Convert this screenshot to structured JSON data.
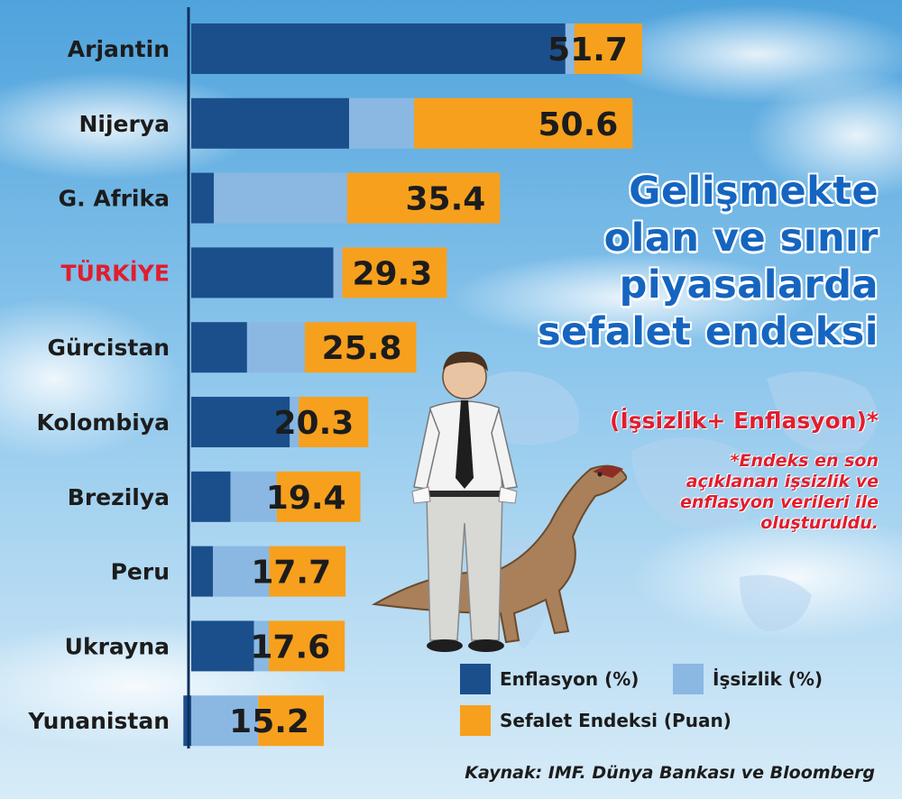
{
  "chart_data": {
    "type": "bar",
    "title": "Gelişmekte olan ve sınır piyasalarda sefalet endeksi",
    "title_lines": [
      "Gelişmekte",
      "olan ve sınır",
      "piyasalarda",
      "sefalet endeksi"
    ],
    "subtitle": "(İşsizlik+ Enflasyon)*",
    "note_lines": [
      "*Endeks en son",
      "açıklanan işsizlik ve",
      "enflasyon verileri ile",
      "oluşturuldu."
    ],
    "categories": [
      "Arjantin",
      "Nijerya",
      "G. Afrika",
      "TÜRKİYE",
      "Gürcistan",
      "Kolombiya",
      "Brezilya",
      "Peru",
      "Ukrayna",
      "Yunanistan"
    ],
    "highlight_category": "TÜRKİYE",
    "series": [
      {
        "name": "Enflasyon (%)",
        "values": [
          42.9,
          18.1,
          2.6,
          16.3,
          6.4,
          11.3,
          4.5,
          2.5,
          7.2,
          -0.3
        ],
        "color": "#1b4f8c"
      },
      {
        "name": "İşsizlik (%)",
        "values": [
          8.8,
          32.5,
          32.8,
          13.0,
          19.4,
          9.0,
          14.9,
          15.2,
          10.4,
          15.5
        ],
        "color": "#8ab8e3"
      },
      {
        "name": "Sefalet Endeksi (Puan)",
        "values": [
          51.7,
          50.6,
          35.4,
          29.3,
          25.8,
          20.3,
          19.4,
          17.7,
          17.6,
          15.2
        ],
        "color": "#f7a01d"
      }
    ],
    "value_labels": [
      "51.7",
      "50.6",
      "35.4",
      "29.3",
      "25.8",
      "20.3",
      "19.4",
      "17.7",
      "17.6",
      "15.2"
    ],
    "legend_position": "bottom-right",
    "source": "Kaynak: IMF. Dünya Bankası ve Bloomberg"
  },
  "colors": {
    "sky_top": "#4a9fd8",
    "sky_bottom": "#cfe7f7",
    "title_blue": "#1565c0",
    "red_text": "#e11d2e",
    "axis_dark": "#0d2f5a"
  },
  "images": [
    "man-with-empty-pockets",
    "dinosaur",
    "world-map"
  ]
}
